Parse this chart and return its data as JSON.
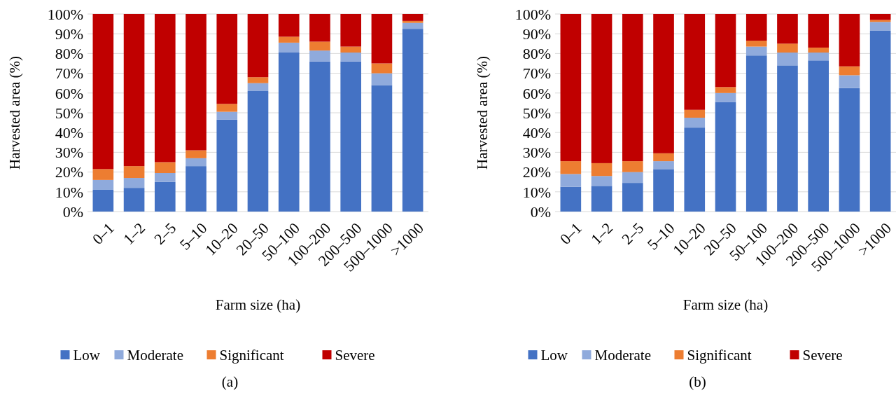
{
  "chart_data": [
    {
      "type": "bar",
      "stacked": true,
      "xlabel": "Farm size (ha)",
      "ylabel": "Harvested area (%)",
      "categories": [
        "0–1",
        "1–2",
        "2–5",
        "5–10",
        "10–20",
        "20–50",
        "50–100",
        "100–200",
        "200–500",
        "500–1000",
        ">1000"
      ],
      "ylim": [
        0,
        100
      ],
      "yticks": [
        {
          "value": 0,
          "label": "0%"
        },
        {
          "value": 10,
          "label": "10%"
        },
        {
          "value": 20,
          "label": "20%"
        },
        {
          "value": 30,
          "label": "30%"
        },
        {
          "value": 40,
          "label": "40%"
        },
        {
          "value": 50,
          "label": "50%"
        },
        {
          "value": 60,
          "label": "60%"
        },
        {
          "value": 70,
          "label": "70%"
        },
        {
          "value": 80,
          "label": "80%"
        },
        {
          "value": 90,
          "label": "90%"
        },
        {
          "value": 100,
          "label": "100%"
        }
      ],
      "grid": "y",
      "legend": "bottom",
      "annotations": [
        "(a)"
      ],
      "series": [
        {
          "name": "Low",
          "color": "#4472c4",
          "values": [
            11,
            12,
            15,
            23,
            46.5,
            61,
            80.5,
            76,
            76,
            64,
            92.5
          ]
        },
        {
          "name": "Moderate",
          "color": "#8faadc",
          "values": [
            5,
            5,
            4.5,
            4,
            4,
            4,
            5,
            5.5,
            4.5,
            6,
            3
          ]
        },
        {
          "name": "Significant",
          "color": "#ed7d31",
          "values": [
            5.5,
            6,
            5.5,
            4,
            4,
            3,
            3,
            4.5,
            3,
            5,
            1
          ]
        },
        {
          "name": "Severe",
          "color": "#c00000",
          "values": [
            78.5,
            77,
            75,
            69,
            45.5,
            32,
            11.5,
            14,
            16.5,
            25,
            3.5
          ]
        }
      ]
    },
    {
      "type": "bar",
      "stacked": true,
      "xlabel": "Farm size (ha)",
      "ylabel": "Harvested area (%)",
      "categories": [
        "0–1",
        "1–2",
        "2–5",
        "5–10",
        "10–20",
        "20–50",
        "50–100",
        "100–200",
        "200–500",
        "500–1000",
        ">1000"
      ],
      "ylim": [
        0,
        100
      ],
      "yticks": [
        {
          "value": 0,
          "label": "0%"
        },
        {
          "value": 10,
          "label": "10%"
        },
        {
          "value": 20,
          "label": "20%"
        },
        {
          "value": 30,
          "label": "30%"
        },
        {
          "value": 40,
          "label": "40%"
        },
        {
          "value": 50,
          "label": "50%"
        },
        {
          "value": 60,
          "label": "60%"
        },
        {
          "value": 70,
          "label": "70%"
        },
        {
          "value": 80,
          "label": "80%"
        },
        {
          "value": 90,
          "label": "90%"
        },
        {
          "value": 100,
          "label": "100%"
        }
      ],
      "grid": "y",
      "legend": "bottom",
      "annotations": [
        "(b)"
      ],
      "series": [
        {
          "name": "Low",
          "color": "#4472c4",
          "values": [
            12.5,
            13,
            14.5,
            21.5,
            42.5,
            55.5,
            79,
            74,
            76.5,
            62.5,
            91.5
          ]
        },
        {
          "name": "Moderate",
          "color": "#8faadc",
          "values": [
            6.5,
            5,
            5.5,
            4,
            5,
            4.5,
            4.5,
            6.5,
            4,
            6.5,
            4.5
          ]
        },
        {
          "name": "Significant",
          "color": "#ed7d31",
          "values": [
            6.5,
            6.5,
            5.5,
            4,
            4,
            3,
            3,
            4.5,
            2.5,
            4.5,
            1
          ]
        },
        {
          "name": "Severe",
          "color": "#c00000",
          "values": [
            74.5,
            75.5,
            74.5,
            70.5,
            48.5,
            37,
            13.5,
            15,
            17,
            26.5,
            3
          ]
        }
      ]
    }
  ]
}
